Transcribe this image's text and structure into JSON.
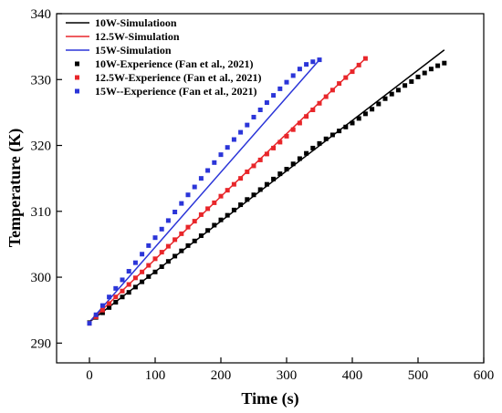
{
  "chart_data": {
    "type": "line",
    "xlabel": "Time (s)",
    "ylabel": "Temperature (K)",
    "xlim": [
      -50,
      600
    ],
    "ylim": [
      287,
      340
    ],
    "xticks": [
      0,
      100,
      200,
      300,
      400,
      500,
      600
    ],
    "yticks": [
      290,
      300,
      310,
      320,
      330,
      340
    ],
    "grid": false,
    "legend_position": "top-left",
    "series": [
      {
        "name": "10W-Simulatioon",
        "kind": "line",
        "color": "#000000",
        "x": [
          0,
          540
        ],
        "y": [
          293.2,
          334.5
        ]
      },
      {
        "name": "12.5W-Simulation",
        "kind": "line",
        "color": "#e8262a",
        "x": [
          0,
          420
        ],
        "y": [
          293.2,
          333.2
        ]
      },
      {
        "name": "15W-Simulation",
        "kind": "line",
        "color": "#2b35d8",
        "x": [
          0,
          350
        ],
        "y": [
          293.2,
          333.0
        ]
      },
      {
        "name": "10W-Experience (Fan et al., 2021)",
        "kind": "scatter",
        "color": "#000000",
        "x": [
          0,
          10,
          20,
          30,
          40,
          50,
          60,
          70,
          80,
          90,
          100,
          110,
          120,
          130,
          140,
          150,
          160,
          170,
          180,
          190,
          200,
          210,
          220,
          230,
          240,
          250,
          260,
          270,
          280,
          290,
          300,
          310,
          320,
          330,
          340,
          350,
          360,
          370,
          380,
          390,
          400,
          410,
          420,
          430,
          440,
          450,
          460,
          470,
          480,
          490,
          500,
          510,
          520,
          530,
          540
        ],
        "y": [
          293.1,
          293.9,
          294.6,
          295.4,
          296.2,
          297.0,
          297.7,
          298.5,
          299.3,
          300.1,
          300.8,
          301.6,
          302.4,
          303.2,
          304.0,
          304.8,
          305.5,
          306.3,
          307.1,
          307.9,
          308.7,
          309.4,
          310.2,
          311.0,
          311.8,
          312.5,
          313.3,
          314.1,
          314.9,
          315.7,
          316.4,
          317.2,
          318.0,
          318.8,
          319.6,
          320.3,
          321.0,
          321.6,
          322.2,
          322.8,
          323.4,
          324.1,
          324.8,
          325.5,
          326.3,
          327.1,
          327.8,
          328.4,
          329.1,
          329.7,
          330.4,
          331.0,
          331.6,
          332.1,
          332.5
        ]
      },
      {
        "name": "12.5W-Experience (Fan et al., 2021)",
        "kind": "scatter",
        "color": "#e8262a",
        "x": [
          0,
          10,
          20,
          30,
          40,
          50,
          60,
          70,
          80,
          90,
          100,
          110,
          120,
          130,
          140,
          150,
          160,
          170,
          180,
          190,
          200,
          210,
          220,
          230,
          240,
          250,
          260,
          270,
          280,
          290,
          300,
          310,
          320,
          330,
          340,
          350,
          360,
          370,
          380,
          390,
          400,
          410,
          420
        ],
        "y": [
          293.0,
          294.0,
          295.0,
          296.0,
          297.0,
          297.9,
          298.9,
          299.9,
          300.8,
          301.8,
          302.8,
          303.8,
          304.7,
          305.7,
          306.6,
          307.6,
          308.5,
          309.5,
          310.4,
          311.3,
          312.3,
          313.2,
          314.1,
          315.0,
          316.0,
          316.9,
          317.8,
          318.7,
          319.6,
          320.5,
          321.4,
          322.4,
          323.4,
          324.4,
          325.4,
          326.4,
          327.4,
          328.4,
          329.4,
          330.3,
          331.2,
          332.2,
          333.2
        ]
      },
      {
        "name": "15W--Experience (Fan et al., 2021)",
        "kind": "scatter",
        "color": "#2b35d8",
        "x": [
          0,
          10,
          20,
          30,
          40,
          50,
          60,
          70,
          80,
          90,
          100,
          110,
          120,
          130,
          140,
          150,
          160,
          170,
          180,
          190,
          200,
          210,
          220,
          230,
          240,
          250,
          260,
          270,
          280,
          290,
          300,
          310,
          320,
          330,
          340,
          350
        ],
        "y": [
          293.0,
          294.3,
          295.7,
          297.0,
          298.3,
          299.6,
          300.9,
          302.2,
          303.5,
          304.8,
          306.0,
          307.3,
          308.6,
          309.9,
          311.2,
          312.5,
          313.7,
          315.0,
          316.2,
          317.4,
          318.6,
          319.7,
          320.9,
          322.0,
          323.1,
          324.3,
          325.4,
          326.5,
          327.6,
          328.6,
          329.6,
          330.6,
          331.6,
          332.3,
          332.7,
          333.0
        ]
      }
    ]
  }
}
